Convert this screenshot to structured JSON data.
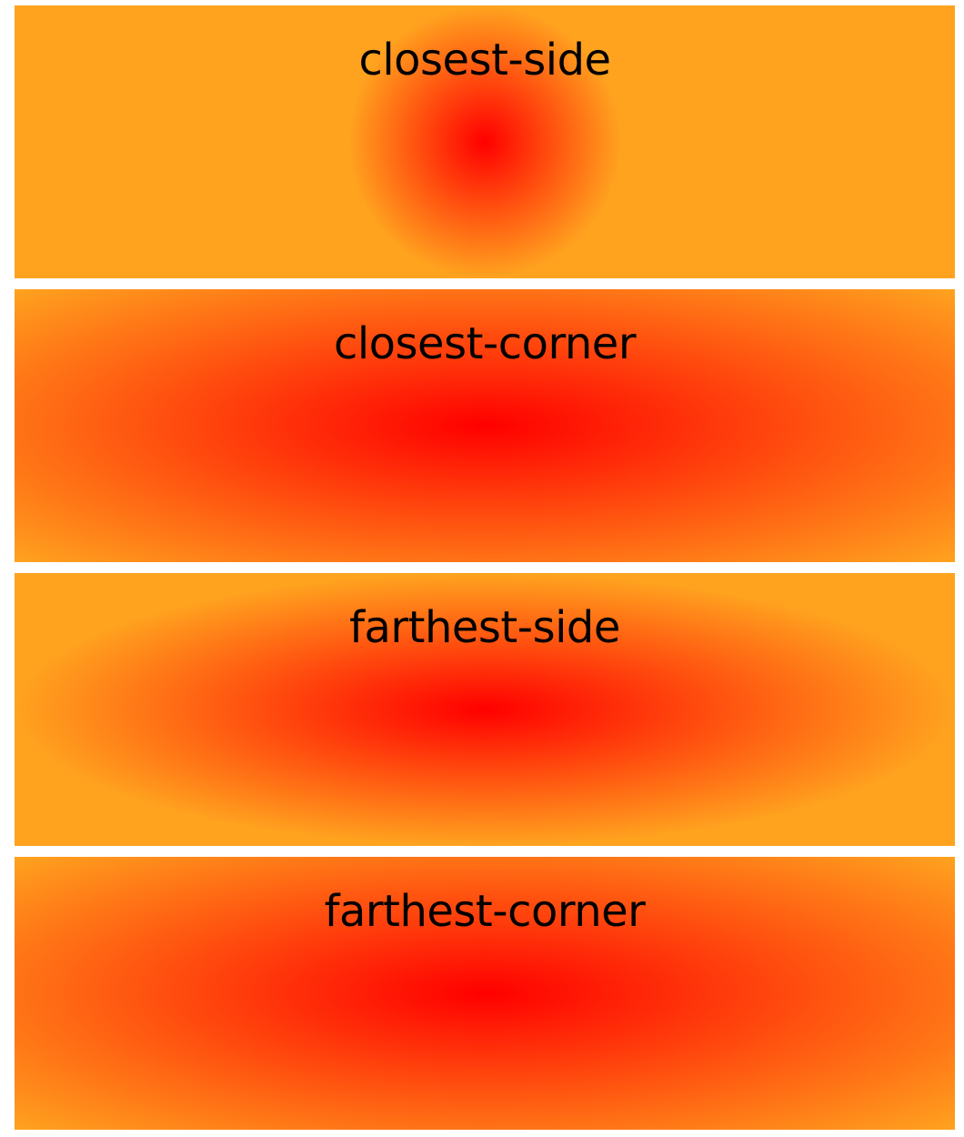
{
  "panels": [
    {
      "label": "closest-side"
    },
    {
      "label": "closest-corner"
    },
    {
      "label": "farthest-side"
    },
    {
      "label": "farthest-corner"
    }
  ],
  "colors": {
    "center": "#ff0000",
    "edge": "#ffa31f",
    "text": "#000000",
    "background": "#ffffff"
  }
}
